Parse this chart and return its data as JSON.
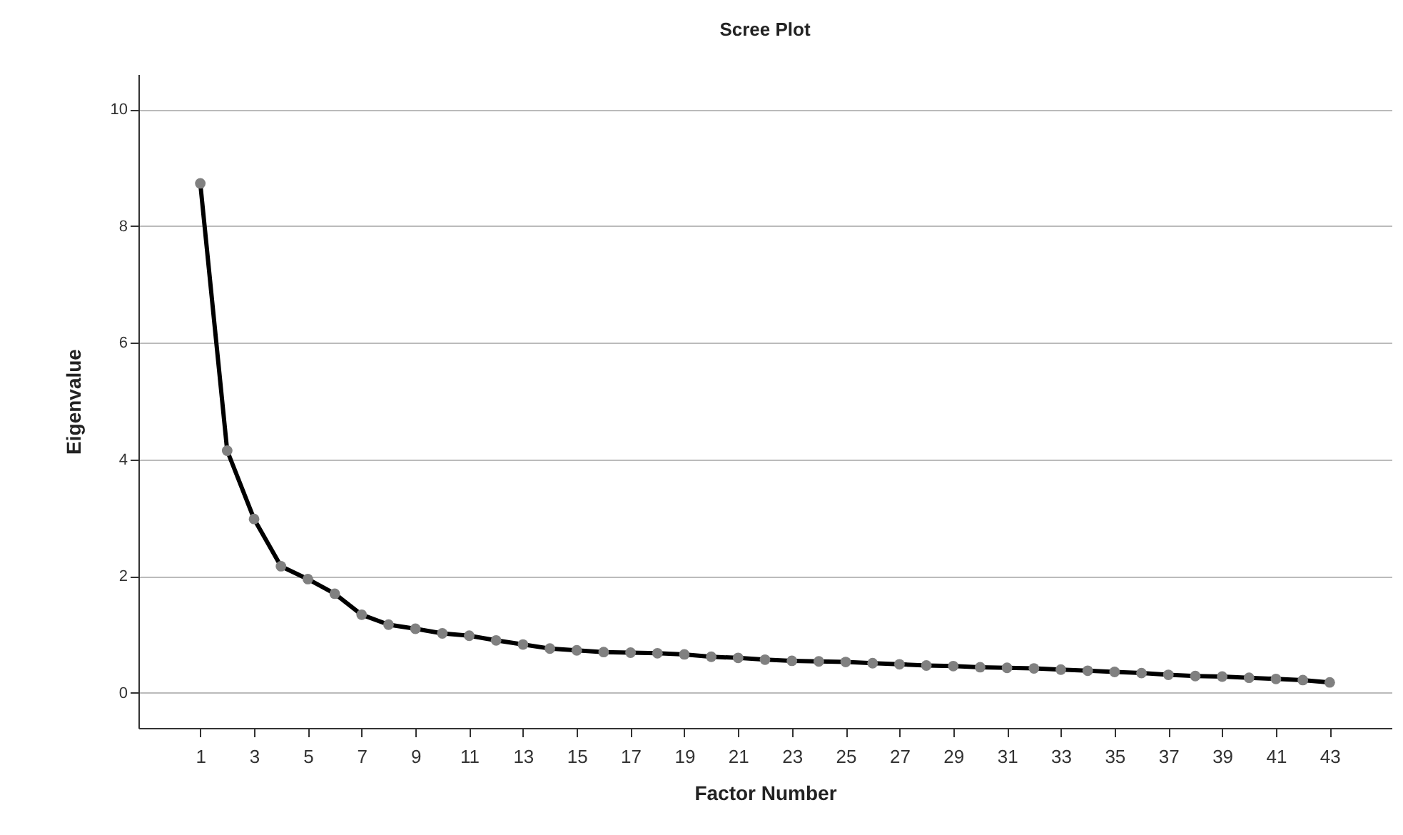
{
  "chart_data": {
    "type": "line",
    "title": "Scree Plot",
    "xlabel": "Factor Number",
    "ylabel": "Eigenvalue",
    "x": [
      1,
      2,
      3,
      4,
      5,
      6,
      7,
      8,
      9,
      10,
      11,
      12,
      13,
      14,
      15,
      16,
      17,
      18,
      19,
      20,
      21,
      22,
      23,
      24,
      25,
      26,
      27,
      28,
      29,
      30,
      31,
      32,
      33,
      34,
      35,
      36,
      37,
      38,
      39,
      40,
      41,
      42,
      43
    ],
    "series": [
      {
        "color": "#000000",
        "values": [
          8.73,
          4.15,
          2.98,
          2.17,
          1.95,
          1.7,
          1.34,
          1.17,
          1.1,
          1.02,
          0.98,
          0.9,
          0.83,
          0.76,
          0.73,
          0.7,
          0.69,
          0.68,
          0.66,
          0.62,
          0.6,
          0.57,
          0.55,
          0.54,
          0.53,
          0.51,
          0.49,
          0.47,
          0.46,
          0.44,
          0.43,
          0.42,
          0.4,
          0.38,
          0.36,
          0.34,
          0.31,
          0.29,
          0.28,
          0.26,
          0.24,
          0.22,
          0.18
        ]
      }
    ],
    "xlim": [
      -1.3,
      45.3
    ],
    "xticks": [
      1,
      3,
      5,
      7,
      9,
      11,
      13,
      15,
      17,
      19,
      21,
      23,
      25,
      27,
      29,
      31,
      33,
      35,
      37,
      39,
      41,
      43
    ],
    "ylim": [
      -0.6,
      10.6
    ],
    "yticks": [
      0,
      2,
      4,
      6,
      8,
      10
    ],
    "grid": "y",
    "marker": "circle",
    "line_style": "solid"
  }
}
